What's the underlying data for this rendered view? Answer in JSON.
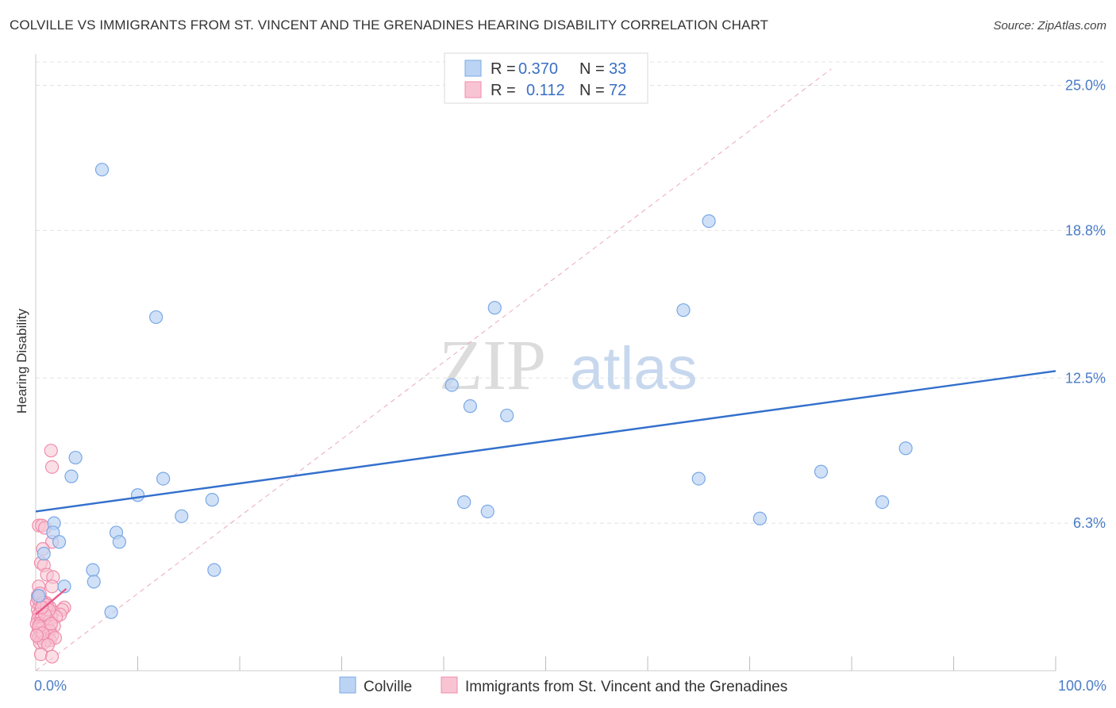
{
  "chart_data": {
    "type": "scatter",
    "title": "COLVILLE VS IMMIGRANTS FROM ST. VINCENT AND THE GRENADINES HEARING DISABILITY CORRELATION CHART",
    "source": "Source: ZipAtlas.com",
    "ylabel": "Hearing Disability",
    "xlim": [
      0,
      100
    ],
    "ylim": [
      0,
      26
    ],
    "x_tick_labels": [
      {
        "value": 0,
        "label": "0.0%"
      },
      {
        "value": 100,
        "label": "100.0%"
      }
    ],
    "y_ticks": [
      {
        "value": 6.3,
        "label": "6.3%"
      },
      {
        "value": 12.5,
        "label": "12.5%"
      },
      {
        "value": 18.8,
        "label": "18.8%"
      },
      {
        "value": 25.0,
        "label": "25.0%"
      }
    ],
    "watermark": {
      "part1": "ZIP",
      "part2": "atlas"
    },
    "stats": {
      "r_label": "R =",
      "n_label": "N =",
      "rows": [
        {
          "series": "Colville",
          "r": "0.370",
          "n": "33"
        },
        {
          "series": "Immigrants from St. Vincent and the Grenadines",
          "r": "0.112",
          "n": "72"
        }
      ]
    },
    "series": [
      {
        "name": "Colville",
        "color": "#7aa8e6",
        "fill": "#bcd4f3",
        "trend_color": "#3370cc",
        "trend": {
          "x": [
            0,
            100
          ],
          "y": [
            6.8,
            12.8
          ]
        },
        "points": [
          [
            6.5,
            21.4
          ],
          [
            11.8,
            15.1
          ],
          [
            1.8,
            6.3
          ],
          [
            1.7,
            5.9
          ],
          [
            2.3,
            5.5
          ],
          [
            0.8,
            5.0
          ],
          [
            2.8,
            3.6
          ],
          [
            3.9,
            9.1
          ],
          [
            3.5,
            8.3
          ],
          [
            7.9,
            5.9
          ],
          [
            8.2,
            5.5
          ],
          [
            5.6,
            4.3
          ],
          [
            5.7,
            3.8
          ],
          [
            7.4,
            2.5
          ],
          [
            10.0,
            7.5
          ],
          [
            12.5,
            8.2
          ],
          [
            14.3,
            6.6
          ],
          [
            17.3,
            7.3
          ],
          [
            17.5,
            4.3
          ],
          [
            42.0,
            7.2
          ],
          [
            44.3,
            6.8
          ],
          [
            40.8,
            12.2
          ],
          [
            42.6,
            11.3
          ],
          [
            46.2,
            10.9
          ],
          [
            45.0,
            15.5
          ],
          [
            63.5,
            15.4
          ],
          [
            66.0,
            19.2
          ],
          [
            65.0,
            8.2
          ],
          [
            71.0,
            6.5
          ],
          [
            77.0,
            8.5
          ],
          [
            83.0,
            7.2
          ],
          [
            85.3,
            9.5
          ],
          [
            0.3,
            3.2
          ]
        ]
      },
      {
        "name": "Immigrants from St. Vincent and the Grenadines",
        "color": "#f08cab",
        "fill": "#f8c4d4",
        "trend_color": "#e8588a",
        "trend": {
          "x": [
            0,
            3.0
          ],
          "y": [
            2.4,
            3.5
          ]
        },
        "ref_line": {
          "x": [
            0,
            78
          ],
          "y": [
            0,
            25.7
          ]
        },
        "points": [
          [
            1.5,
            9.4
          ],
          [
            1.6,
            8.7
          ],
          [
            0.3,
            6.2
          ],
          [
            0.6,
            6.2
          ],
          [
            0.9,
            6.1
          ],
          [
            1.6,
            5.5
          ],
          [
            0.7,
            5.2
          ],
          [
            0.5,
            4.6
          ],
          [
            0.8,
            4.5
          ],
          [
            1.1,
            4.1
          ],
          [
            1.7,
            4.0
          ],
          [
            0.3,
            3.6
          ],
          [
            1.6,
            3.6
          ],
          [
            0.2,
            3.2
          ],
          [
            0.6,
            3.0
          ],
          [
            1.0,
            2.9
          ],
          [
            0.1,
            2.9
          ],
          [
            0.4,
            2.8
          ],
          [
            0.9,
            2.7
          ],
          [
            1.4,
            2.7
          ],
          [
            2.8,
            2.7
          ],
          [
            2.6,
            2.6
          ],
          [
            0.2,
            2.6
          ],
          [
            0.5,
            2.6
          ],
          [
            0.8,
            2.5
          ],
          [
            1.2,
            2.5
          ],
          [
            1.7,
            2.5
          ],
          [
            2.4,
            2.4
          ],
          [
            0.3,
            2.4
          ],
          [
            0.6,
            2.3
          ],
          [
            1.0,
            2.3
          ],
          [
            1.5,
            2.3
          ],
          [
            2.0,
            2.3
          ],
          [
            0.2,
            2.2
          ],
          [
            0.5,
            2.2
          ],
          [
            0.9,
            2.1
          ],
          [
            1.3,
            2.1
          ],
          [
            0.1,
            2.0
          ],
          [
            0.4,
            2.0
          ],
          [
            0.7,
            1.9
          ],
          [
            1.1,
            1.9
          ],
          [
            1.8,
            1.9
          ],
          [
            0.3,
            1.8
          ],
          [
            0.6,
            1.8
          ],
          [
            1.0,
            1.7
          ],
          [
            1.4,
            1.7
          ],
          [
            0.2,
            1.6
          ],
          [
            0.5,
            1.6
          ],
          [
            0.8,
            1.5
          ],
          [
            1.2,
            1.5
          ],
          [
            1.6,
            1.5
          ],
          [
            0.3,
            1.4
          ],
          [
            0.6,
            1.4
          ],
          [
            1.0,
            1.3
          ],
          [
            1.4,
            1.3
          ],
          [
            1.9,
            1.4
          ],
          [
            0.4,
            1.2
          ],
          [
            0.8,
            1.2
          ],
          [
            1.2,
            1.1
          ],
          [
            0.5,
            0.7
          ],
          [
            1.6,
            0.6
          ],
          [
            0.2,
            3.1
          ],
          [
            0.4,
            3.3
          ],
          [
            0.7,
            2.9
          ],
          [
            1.1,
            2.8
          ],
          [
            1.3,
            2.6
          ],
          [
            0.9,
            2.4
          ],
          [
            0.3,
            1.9
          ],
          [
            0.7,
            1.6
          ],
          [
            0.1,
            1.5
          ],
          [
            1.5,
            2.0
          ],
          [
            0.6,
            2.7
          ]
        ]
      }
    ],
    "legend": {
      "placement": "bottom",
      "entries": [
        "Colville",
        "Immigrants from St. Vincent and the Grenadines"
      ]
    }
  }
}
